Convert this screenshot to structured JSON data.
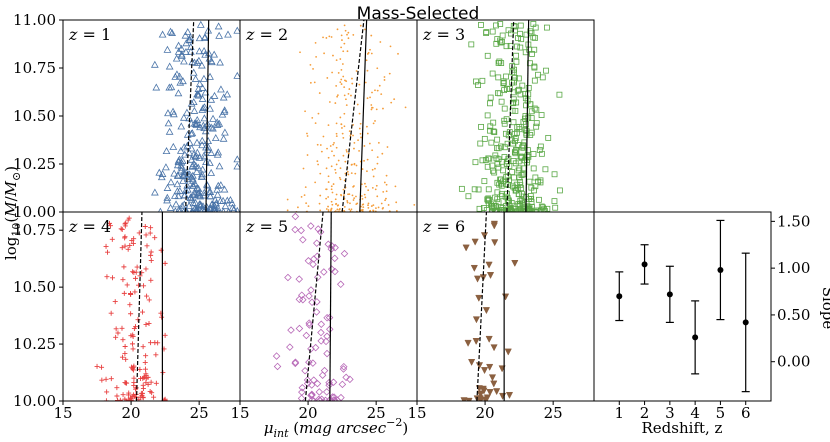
{
  "chart_data": {
    "type": "scatter",
    "title": "Mass-Selected",
    "ylabel": "log10(M/M⊙)",
    "xlabel": "μint (mag arcsec^-2)",
    "right_ylabel": "Slope",
    "right_xlabel": "Redshift, z",
    "xlim": [
      15,
      28
    ],
    "ylim_top": [
      10.0,
      11.0
    ],
    "ylim_bottom": [
      10.0,
      10.83
    ],
    "x_ticks": [
      "15",
      "20",
      "25"
    ],
    "y_ticks_top": [
      "11.00",
      "10.75",
      "10.50",
      "10.25",
      "10.00"
    ],
    "y_ticks_bottom": [
      "10.75",
      "10.50",
      "10.25",
      "10.00"
    ],
    "panels": [
      {
        "label": "z = 1",
        "z_label": "z",
        "z_value": "1",
        "marker": "triangle",
        "color": "#4a74a8",
        "n": 300,
        "x_mean": 24.9,
        "x_sd": 1.3,
        "x_min": 20.5,
        "x_max": 27.8,
        "ylim": [
          10.0,
          11.0
        ],
        "dashed": [
          [
            24.0,
            10.0
          ],
          [
            24.6,
            11.0
          ]
        ],
        "solid": [
          [
            25.5,
            10.0
          ],
          [
            25.7,
            11.0
          ]
        ]
      },
      {
        "label": "z = 2",
        "z_label": "z",
        "z_value": "2",
        "marker": "dot",
        "color": "#f59d3a",
        "n": 320,
        "x_mean": 23.0,
        "x_sd": 1.7,
        "x_min": 18.5,
        "x_max": 27.8,
        "ylim": [
          10.0,
          11.0
        ],
        "dashed": [
          [
            22.5,
            10.0
          ],
          [
            24.1,
            11.0
          ]
        ],
        "solid": [
          [
            23.8,
            10.0
          ],
          [
            24.3,
            11.0
          ]
        ]
      },
      {
        "label": "z = 3",
        "z_label": "z",
        "z_value": "3",
        "marker": "square",
        "color": "#5aa846",
        "n": 360,
        "x_mean": 22.0,
        "x_sd": 1.3,
        "x_min": 15.5,
        "x_max": 26.0,
        "ylim": [
          10.0,
          11.0
        ],
        "dashed": [
          [
            21.6,
            10.0
          ],
          [
            22.1,
            11.0
          ]
        ],
        "solid": [
          [
            23.0,
            10.0
          ],
          [
            23.2,
            11.0
          ]
        ]
      },
      {
        "label": "z = 4",
        "z_label": "z",
        "z_value": "4",
        "marker": "plus",
        "color": "#e84040",
        "n": 160,
        "x_mean": 20.3,
        "x_sd": 1.1,
        "x_min": 17.5,
        "x_max": 22.5,
        "ylim": [
          10.0,
          10.83
        ],
        "dashed": [
          [
            20.4,
            10.0
          ],
          [
            20.8,
            10.83
          ]
        ],
        "solid": [
          [
            22.3,
            10.0
          ],
          [
            22.3,
            10.83
          ]
        ]
      },
      {
        "label": "z = 5",
        "z_label": "z",
        "z_value": "5",
        "marker": "diamond",
        "color": "#b768b7",
        "n": 95,
        "x_mean": 20.6,
        "x_sd": 1.2,
        "x_min": 17.5,
        "x_max": 24.0,
        "ylim": [
          10.0,
          10.83
        ],
        "dashed": [
          [
            19.8,
            10.0
          ],
          [
            21.1,
            10.83
          ]
        ],
        "solid": [
          [
            21.6,
            10.0
          ],
          [
            21.7,
            10.83
          ]
        ]
      },
      {
        "label": "z = 6",
        "z_label": "z",
        "z_value": "6",
        "marker": "tri-down",
        "color": "#8b6040",
        "n": 45,
        "x_mean": 20.2,
        "x_sd": 0.9,
        "x_min": 18.3,
        "x_max": 22.5,
        "ylim": [
          10.0,
          10.83
        ],
        "dashed": [
          [
            19.4,
            10.0
          ],
          [
            20.1,
            10.83
          ]
        ],
        "solid": [
          [
            21.4,
            10.0
          ],
          [
            21.4,
            10.83
          ]
        ]
      }
    ],
    "slope_panel": {
      "x_ticks": [
        "1",
        "2",
        "3",
        "4",
        "5",
        "6"
      ],
      "y_ticks": [
        "1.50",
        "1.00",
        "0.50",
        "0.00"
      ],
      "xlim": [
        0,
        7
      ],
      "ylim": [
        -0.42,
        1.6
      ],
      "points": [
        {
          "z": 1,
          "slope": 0.7,
          "lo": 0.44,
          "hi": 0.96
        },
        {
          "z": 2,
          "slope": 1.04,
          "lo": 0.83,
          "hi": 1.25
        },
        {
          "z": 3,
          "slope": 0.72,
          "lo": 0.42,
          "hi": 1.02
        },
        {
          "z": 4,
          "slope": 0.26,
          "lo": -0.13,
          "hi": 0.65
        },
        {
          "z": 5,
          "slope": 0.98,
          "lo": 0.45,
          "hi": 1.51
        },
        {
          "z": 6,
          "slope": 0.42,
          "lo": -0.32,
          "hi": 1.16
        }
      ]
    }
  }
}
